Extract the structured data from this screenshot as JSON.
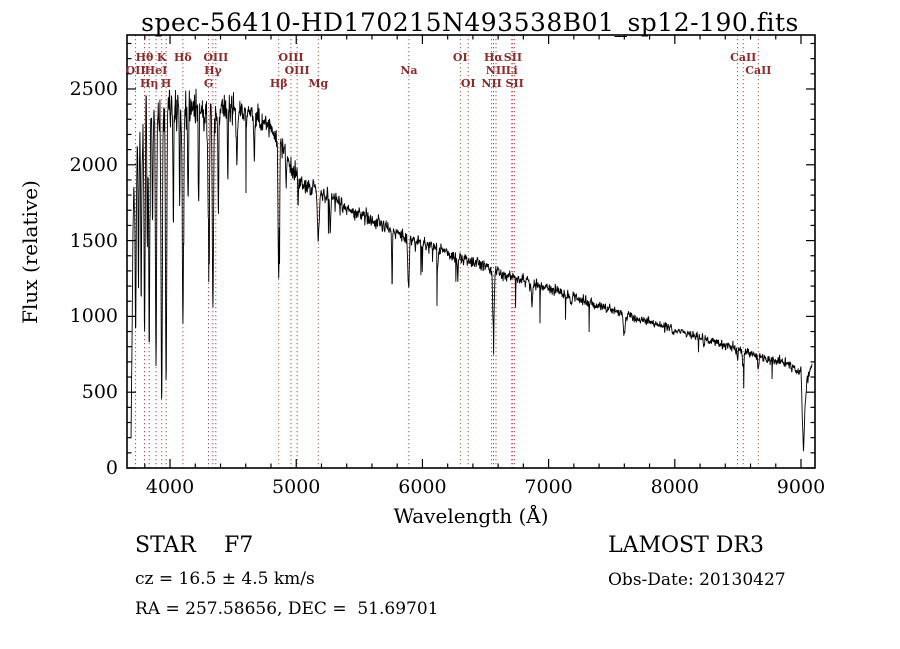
{
  "title": "spec-56410-HD170215N493538B01_sp12-190.fits",
  "axes": {
    "xlabel": "Wavelength (Å)",
    "ylabel": "Flux (relative)"
  },
  "annotations": {
    "class_label": "STAR    F7",
    "survey": "LAMOST DR3",
    "cz": "cz = 16.5 ± 4.5 km/s",
    "obs_date": "Obs-Date: 20130427",
    "radec": "RA = 257.58656, DEC =  51.69701"
  },
  "chart_data": {
    "type": "line",
    "title": "spec-56410-HD170215N493538B01_sp12-190.fits",
    "xlabel": "Wavelength (Å)",
    "ylabel": "Flux (relative)",
    "xlim": [
      3659,
      9111
    ],
    "ylim": [
      0,
      2856
    ],
    "x_ticks": [
      4000,
      5000,
      6000,
      7000,
      8000,
      9000
    ],
    "y_ticks": [
      0,
      500,
      1000,
      1500,
      2000,
      2500
    ],
    "x_minor_step": 200,
    "y_minor_step": 100,
    "grid": false,
    "frame_color": "#000000",
    "series": [
      {
        "name": "spectrum-flux",
        "color": "#000000",
        "sample_step": 2.2,
        "noise": {
          "base": 0.02,
          "blue_amp": 0.045,
          "blue_scale": 500,
          "red_amp": 0.015,
          "red_start": 8200,
          "spike_prob": 0.012,
          "seed": 1234
        },
        "continuum_points": [
          [
            3690,
            120
          ],
          [
            3697,
            700
          ],
          [
            3705,
            1500
          ],
          [
            3715,
            1850
          ],
          [
            3730,
            2000
          ],
          [
            3755,
            2130
          ],
          [
            3790,
            2230
          ],
          [
            3840,
            2290
          ],
          [
            3900,
            2330
          ],
          [
            3980,
            2355
          ],
          [
            4060,
            2365
          ],
          [
            4150,
            2360
          ],
          [
            4250,
            2345
          ],
          [
            4350,
            2340
          ],
          [
            4450,
            2355
          ],
          [
            4550,
            2360
          ],
          [
            4650,
            2340
          ],
          [
            4750,
            2280
          ],
          [
            4850,
            2180
          ],
          [
            4950,
            2000
          ],
          [
            5050,
            1880
          ],
          [
            5150,
            1830
          ],
          [
            5250,
            1785
          ],
          [
            5350,
            1740
          ],
          [
            5450,
            1695
          ],
          [
            5550,
            1655
          ],
          [
            5650,
            1615
          ],
          [
            5750,
            1575
          ],
          [
            5850,
            1535
          ],
          [
            5950,
            1500
          ],
          [
            6050,
            1468
          ],
          [
            6150,
            1436
          ],
          [
            6250,
            1404
          ],
          [
            6350,
            1372
          ],
          [
            6450,
            1340
          ],
          [
            6550,
            1310
          ],
          [
            6650,
            1280
          ],
          [
            6750,
            1252
          ],
          [
            6850,
            1224
          ],
          [
            6950,
            1196
          ],
          [
            7050,
            1168
          ],
          [
            7150,
            1140
          ],
          [
            7250,
            1112
          ],
          [
            7350,
            1084
          ],
          [
            7450,
            1056
          ],
          [
            7550,
            1030
          ],
          [
            7650,
            1004
          ],
          [
            7750,
            978
          ],
          [
            7850,
            952
          ],
          [
            7950,
            926
          ],
          [
            8050,
            898
          ],
          [
            8150,
            872
          ],
          [
            8250,
            846
          ],
          [
            8350,
            820
          ],
          [
            8450,
            795
          ],
          [
            8550,
            770
          ],
          [
            8650,
            745
          ],
          [
            8750,
            720
          ],
          [
            8850,
            695
          ],
          [
            8950,
            655
          ],
          [
            9000,
            630
          ],
          [
            9012,
            300
          ],
          [
            9020,
            95
          ],
          [
            9032,
            420
          ],
          [
            9050,
            600
          ],
          [
            9085,
            655
          ]
        ],
        "absorption_lines": [
          {
            "wl": 3727,
            "depth": 0.55,
            "sigma": 4
          },
          {
            "wl": 3750,
            "depth": 0.45,
            "sigma": 3
          },
          {
            "wl": 3771,
            "depth": 0.5,
            "sigma": 3.5
          },
          {
            "wl": 3798,
            "depth": 0.6,
            "sigma": 4
          },
          {
            "wl": 3820,
            "depth": 0.35,
            "sigma": 3
          },
          {
            "wl": 3835,
            "depth": 0.65,
            "sigma": 4
          },
          {
            "wl": 3862,
            "depth": 0.3,
            "sigma": 3
          },
          {
            "wl": 3889,
            "depth": 0.7,
            "sigma": 4.5
          },
          {
            "wl": 3934,
            "depth": 0.82,
            "sigma": 5
          },
          {
            "wl": 3969,
            "depth": 0.76,
            "sigma": 5
          },
          {
            "wl": 4026,
            "depth": 0.3,
            "sigma": 3.5
          },
          {
            "wl": 4077,
            "depth": 0.25,
            "sigma": 3
          },
          {
            "wl": 4102,
            "depth": 0.6,
            "sigma": 5
          },
          {
            "wl": 4144,
            "depth": 0.25,
            "sigma": 3.5
          },
          {
            "wl": 4227,
            "depth": 0.28,
            "sigma": 3
          },
          {
            "wl": 4305,
            "depth": 0.3,
            "sigma": 6
          },
          {
            "wl": 4340,
            "depth": 0.55,
            "sigma": 5
          },
          {
            "wl": 4383,
            "depth": 0.28,
            "sigma": 3.5
          },
          {
            "wl": 4458,
            "depth": 0.2,
            "sigma": 3
          },
          {
            "wl": 4530,
            "depth": 0.16,
            "sigma": 4
          },
          {
            "wl": 4668,
            "depth": 0.13,
            "sigma": 4
          },
          {
            "wl": 4861,
            "depth": 0.42,
            "sigma": 5
          },
          {
            "wl": 4920,
            "depth": 0.1,
            "sigma": 3
          },
          {
            "wl": 5015,
            "depth": 0.08,
            "sigma": 3
          },
          {
            "wl": 5175,
            "depth": 0.16,
            "sigma": 7
          },
          {
            "wl": 5270,
            "depth": 0.1,
            "sigma": 5
          },
          {
            "wl": 5760,
            "depth": 0.25,
            "sigma": 2.5
          },
          {
            "wl": 5890,
            "depth": 0.22,
            "sigma": 6
          },
          {
            "wl": 6122,
            "depth": 0.08,
            "sigma": 4
          },
          {
            "wl": 6280,
            "depth": 0.1,
            "sigma": 3
          },
          {
            "wl": 6563,
            "depth": 0.3,
            "sigma": 6
          },
          {
            "wl": 6870,
            "depth": 0.12,
            "sigma": 5
          },
          {
            "wl": 7180,
            "depth": 0.06,
            "sigma": 5
          },
          {
            "wl": 7600,
            "depth": 0.13,
            "sigma": 8
          },
          {
            "wl": 8230,
            "depth": 0.05,
            "sigma": 5
          },
          {
            "wl": 8498,
            "depth": 0.1,
            "sigma": 4
          },
          {
            "wl": 8542,
            "depth": 0.13,
            "sigma": 5
          },
          {
            "wl": 8662,
            "depth": 0.12,
            "sigma": 5
          }
        ]
      }
    ],
    "spectral_line_markers": {
      "color": "#a03c3c",
      "label_color": "#8b2a2a",
      "lines": [
        3727,
        3798,
        3835,
        3889,
        3934,
        3969,
        4102,
        4305,
        4340,
        4363,
        4861,
        4959,
        5007,
        5175,
        5893,
        6300,
        6363,
        6548,
        6563,
        6583,
        6708,
        6717,
        6731,
        8498,
        8542,
        8662
      ],
      "labels": [
        {
          "text": "Hθ",
          "wl": 3798,
          "row": 0
        },
        {
          "text": "K",
          "wl": 3934,
          "row": 0
        },
        {
          "text": "Hδ",
          "wl": 4102,
          "row": 0
        },
        {
          "text": "OIII",
          "wl": 4363,
          "row": 0
        },
        {
          "text": "OIII",
          "wl": 4959,
          "row": 0
        },
        {
          "text": "OI",
          "wl": 6300,
          "row": 0
        },
        {
          "text": "Hα",
          "wl": 6563,
          "row": 0
        },
        {
          "text": "SII",
          "wl": 6717,
          "row": 0
        },
        {
          "text": "CaII",
          "wl": 8542,
          "row": 0
        },
        {
          "text": "OII",
          "wl": 3727,
          "row": 1
        },
        {
          "text": "HeI",
          "wl": 3889,
          "row": 1
        },
        {
          "text": "Hγ",
          "wl": 4340,
          "row": 1
        },
        {
          "text": "OIII",
          "wl": 5007,
          "row": 1
        },
        {
          "text": "Na",
          "wl": 5893,
          "row": 1
        },
        {
          "text": "NII",
          "wl": 6583,
          "row": 1
        },
        {
          "text": "Li",
          "wl": 6708,
          "row": 1
        },
        {
          "text": "CaII",
          "wl": 8662,
          "row": 1
        },
        {
          "text": "Hη",
          "wl": 3835,
          "row": 2
        },
        {
          "text": "H",
          "wl": 3969,
          "row": 2
        },
        {
          "text": "G",
          "wl": 4305,
          "row": 2
        },
        {
          "text": "Hβ",
          "wl": 4861,
          "row": 2
        },
        {
          "text": "Mg",
          "wl": 5175,
          "row": 2
        },
        {
          "text": "OI",
          "wl": 6363,
          "row": 2
        },
        {
          "text": "NII",
          "wl": 6548,
          "row": 2
        },
        {
          "text": "SII",
          "wl": 6731,
          "row": 2
        }
      ]
    }
  }
}
